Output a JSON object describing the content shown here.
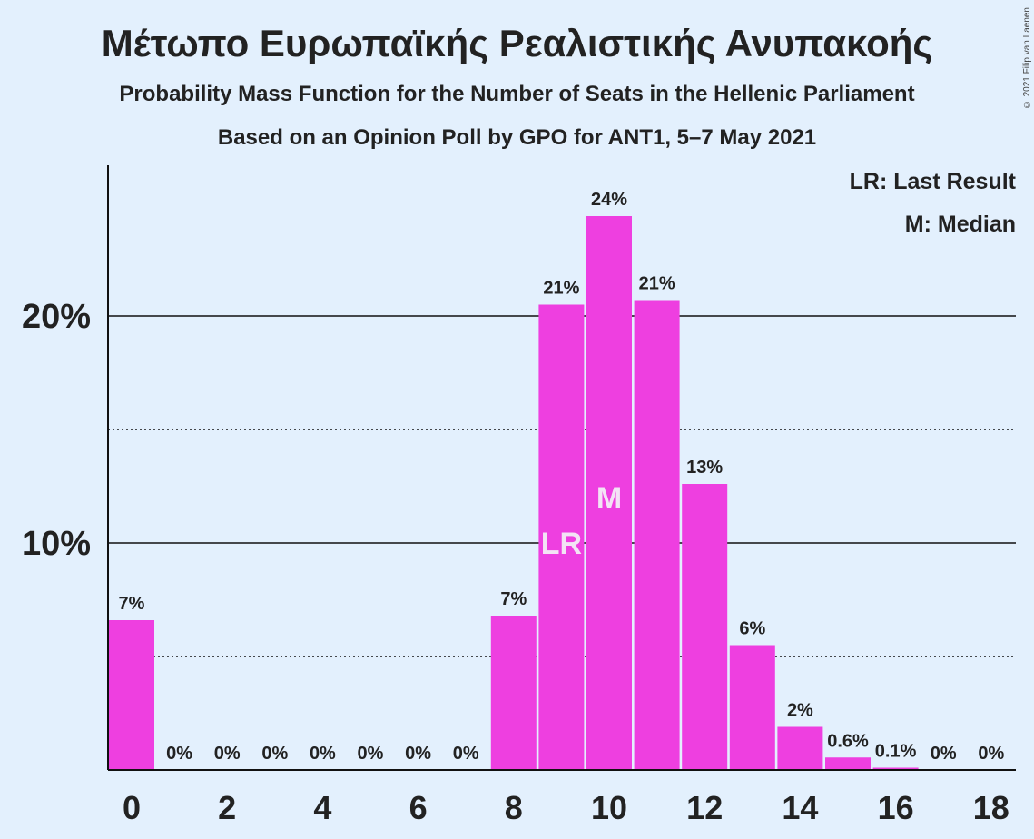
{
  "header": {
    "title": "Μέτωπο Ευρωπαϊκής Ρεαλιστικής Ανυπακοής",
    "subtitle1": "Probability Mass Function for the Number of Seats in the Hellenic Parliament",
    "subtitle2": "Based on an Opinion Poll by GPO for ANT1, 5–7 May 2021",
    "copyright": "© 2021 Filip van Laenen"
  },
  "legend": {
    "last_result": "LR: Last Result",
    "median": "M: Median"
  },
  "colors": {
    "bar": "#ee3fe0",
    "background": "#e3f0fd",
    "axis": "#111111",
    "marker_text": "#f3e3f5"
  },
  "chart_data": {
    "type": "bar",
    "categories": [
      0,
      1,
      2,
      3,
      4,
      5,
      6,
      7,
      8,
      9,
      10,
      11,
      12,
      13,
      14,
      15,
      16,
      17,
      18
    ],
    "values": [
      6.6,
      0,
      0,
      0,
      0,
      0,
      0,
      0,
      6.8,
      20.5,
      24.4,
      20.7,
      12.6,
      5.5,
      1.9,
      0.55,
      0.1,
      0,
      0
    ],
    "data_labels": [
      "7%",
      "0%",
      "0%",
      "0%",
      "0%",
      "0%",
      "0%",
      "0%",
      "7%",
      "21%",
      "24%",
      "21%",
      "13%",
      "6%",
      "2%",
      "0.6%",
      "0.1%",
      "0%",
      "0%"
    ],
    "x_tick_labels": [
      "0",
      "2",
      "4",
      "6",
      "8",
      "10",
      "12",
      "14",
      "16",
      "18"
    ],
    "y_tick_labels": [
      "10%",
      "20%"
    ],
    "y_major_ticks": [
      10,
      20
    ],
    "y_minor_ticks": [
      5,
      15
    ],
    "ylim": [
      0,
      26.6
    ],
    "markers": [
      {
        "category": 9,
        "label": "LR"
      },
      {
        "category": 10,
        "label": "M"
      }
    ],
    "xlabel": "",
    "ylabel": "",
    "grid": true,
    "legend_position": "top-right"
  }
}
